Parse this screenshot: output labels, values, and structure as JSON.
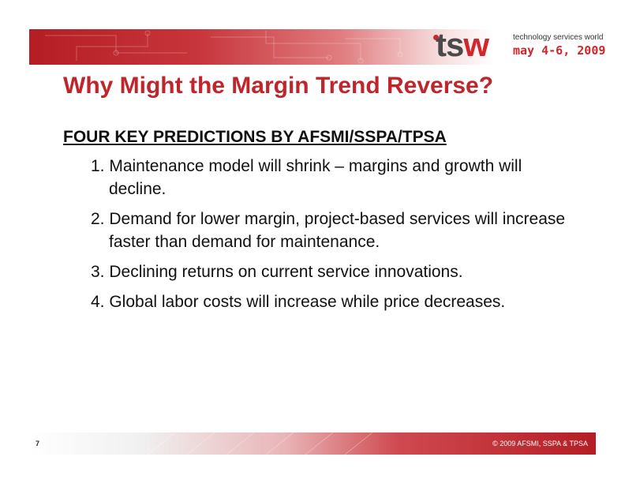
{
  "header": {
    "logo_text_t": "t",
    "logo_text_s": "s",
    "logo_text_w": "w",
    "logo_subtitle": "technology services world",
    "logo_date": "may 4-6, 2009"
  },
  "slide": {
    "title": "Why Might the Margin Trend Reverse?",
    "heading": "FOUR KEY PREDICTIONS BY AFSMI/SSPA/TPSA",
    "items": [
      "1. Maintenance model will shrink – margins and growth will decline.",
      "2. Demand for lower margin, project-based services will increase faster than demand for maintenance.",
      "3. Declining returns on current service innovations.",
      "4. Global labor costs will increase while price decreases."
    ]
  },
  "footer": {
    "page_number": "7",
    "copyright": "© 2009 AFSMI, SSPA & TPSA"
  },
  "colors": {
    "accent": "#c0252b",
    "text": "#111111"
  }
}
